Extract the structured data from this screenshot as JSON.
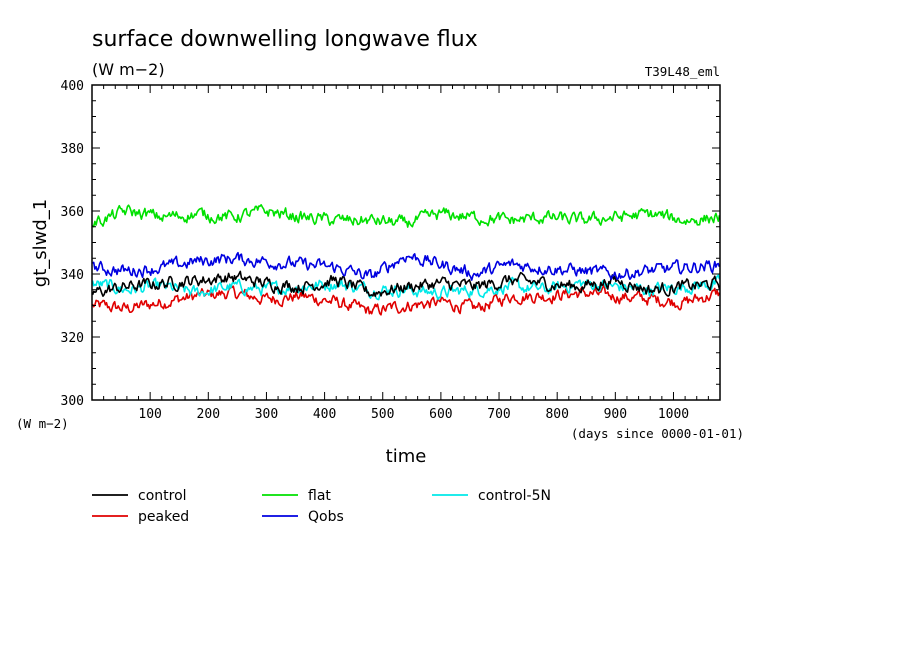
{
  "chart_data": {
    "type": "line",
    "title": "surface downwelling longwave flux",
    "units": "(W m−2)",
    "experiment": "T39L48_eml",
    "ylabel": "gt_slwd_1",
    "yunits": "(W m−2)",
    "xlabel": "time",
    "xunits": "(days since 0000-01-01)",
    "xlim": [
      0,
      1080
    ],
    "ylim": [
      300,
      400
    ],
    "xticks": [
      100,
      200,
      300,
      400,
      500,
      600,
      700,
      800,
      900,
      1000
    ],
    "yticks": [
      300,
      320,
      340,
      360,
      380,
      400
    ],
    "grid": false,
    "legend_position": "bottom",
    "series": [
      {
        "name": "control",
        "color": "#000000",
        "mean": 336.5,
        "x": [
          0,
          60,
          120,
          180,
          240,
          300,
          360,
          420,
          480,
          540,
          600,
          660,
          720,
          780,
          840,
          900,
          960,
          1020,
          1080
        ],
        "y": [
          334,
          336,
          337,
          338,
          339,
          337,
          336,
          338,
          334,
          336,
          337,
          336,
          338,
          337,
          336,
          338,
          335,
          336,
          337
        ]
      },
      {
        "name": "peaked",
        "color": "#e00000",
        "mean": 331.5,
        "x": [
          0,
          60,
          120,
          180,
          240,
          300,
          360,
          420,
          480,
          540,
          600,
          660,
          720,
          780,
          840,
          900,
          960,
          1020,
          1080
        ],
        "y": [
          330,
          329,
          331,
          333,
          334,
          332,
          333,
          331,
          328,
          330,
          331,
          329,
          333,
          333,
          334,
          333,
          332,
          331,
          334
        ]
      },
      {
        "name": "flat",
        "color": "#00e000",
        "mean": 358,
        "x": [
          0,
          60,
          120,
          180,
          240,
          300,
          360,
          420,
          480,
          540,
          600,
          660,
          720,
          780,
          840,
          900,
          960,
          1020,
          1080
        ],
        "y": [
          356,
          360,
          358,
          359,
          358,
          360,
          358,
          357,
          357,
          356,
          359,
          358,
          357,
          358,
          357,
          358,
          359,
          357,
          358
        ]
      },
      {
        "name": "Qobs",
        "color": "#0000e0",
        "mean": 341.5,
        "x": [
          0,
          60,
          120,
          180,
          240,
          300,
          360,
          420,
          480,
          540,
          600,
          660,
          720,
          780,
          840,
          900,
          960,
          1020,
          1080
        ],
        "y": [
          342,
          341,
          342,
          344,
          345,
          344,
          343,
          342,
          339,
          346,
          343,
          340,
          343,
          342,
          341,
          340,
          341,
          342,
          343
        ]
      },
      {
        "name": "control-5N",
        "color": "#00e8e8",
        "mean": 335.5,
        "x": [
          0,
          60,
          120,
          180,
          240,
          300,
          360,
          420,
          480,
          540,
          600,
          660,
          720,
          780,
          840,
          900,
          960,
          1020,
          1080
        ],
        "y": [
          337,
          335,
          336,
          334,
          336,
          335,
          336,
          337,
          335,
          335,
          334,
          335,
          336,
          335,
          337,
          336,
          335,
          336,
          337
        ]
      }
    ]
  }
}
